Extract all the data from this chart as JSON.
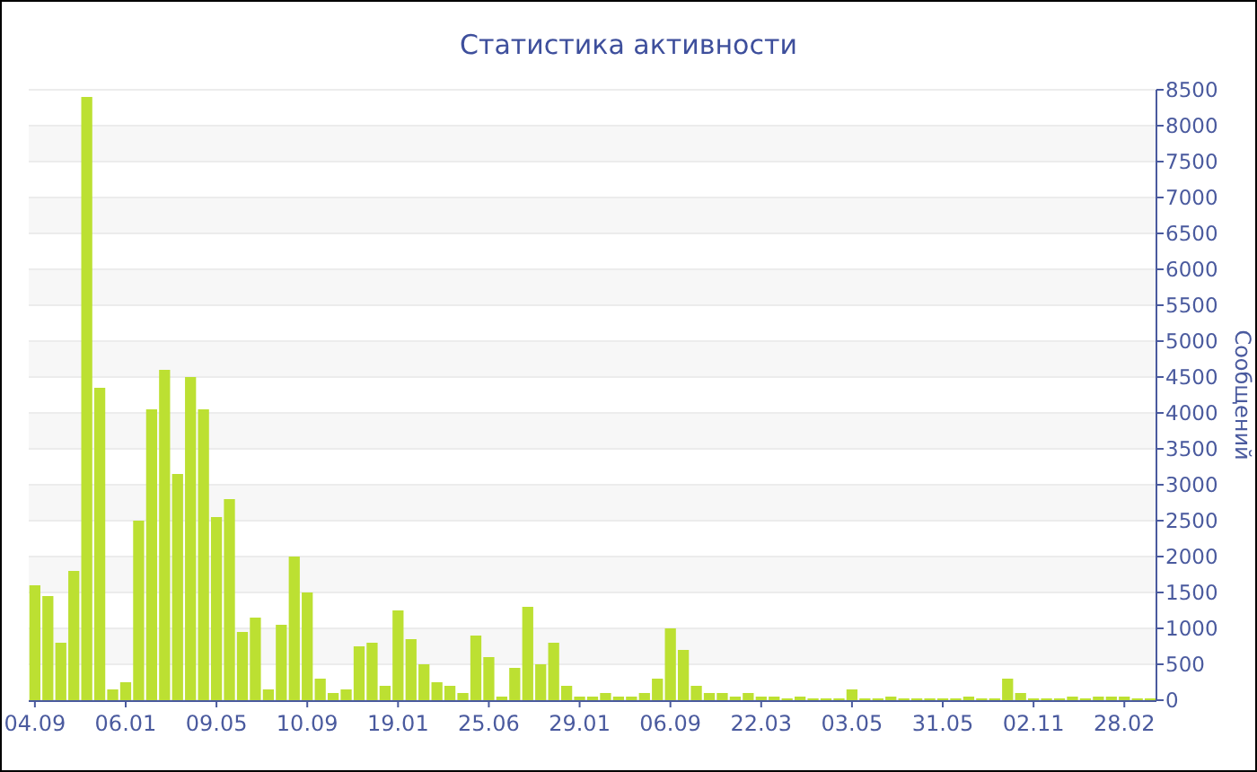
{
  "chart_data": {
    "type": "bar",
    "title": "Статистика активности",
    "ylabel": "Сообщений",
    "categories": [
      "04.09",
      null,
      null,
      null,
      null,
      null,
      null,
      "06.01",
      null,
      null,
      null,
      null,
      null,
      null,
      "09.05",
      null,
      null,
      null,
      null,
      null,
      null,
      "10.09",
      null,
      null,
      null,
      null,
      null,
      null,
      "19.01",
      null,
      null,
      null,
      null,
      null,
      null,
      "25.06",
      null,
      null,
      null,
      null,
      null,
      null,
      "29.01",
      null,
      null,
      null,
      null,
      null,
      null,
      "06.09",
      null,
      null,
      null,
      null,
      null,
      null,
      "22.03",
      null,
      null,
      null,
      null,
      null,
      null,
      "03.05",
      null,
      null,
      null,
      null,
      null,
      null,
      "31.05",
      null,
      null,
      null,
      null,
      null,
      null,
      "02.11",
      null,
      null,
      null,
      null,
      null,
      null,
      "28.02",
      null,
      null
    ],
    "values": [
      1600,
      1450,
      800,
      1800,
      8400,
      4350,
      150,
      250,
      2500,
      4050,
      4600,
      3150,
      4500,
      4050,
      2550,
      2800,
      950,
      1150,
      150,
      1050,
      2000,
      1500,
      300,
      100,
      150,
      750,
      800,
      200,
      1250,
      850,
      500,
      250,
      200,
      100,
      900,
      600,
      50,
      450,
      1300,
      500,
      800,
      200,
      50,
      50,
      100,
      50,
      50,
      100,
      300,
      1000,
      700,
      200,
      100,
      100,
      50,
      100,
      50,
      50,
      25,
      50,
      25,
      25,
      25,
      150,
      25,
      25,
      50,
      25,
      25,
      25,
      25,
      25,
      50,
      25,
      25,
      300,
      100,
      25,
      25,
      25,
      50,
      25,
      50,
      50,
      50,
      25,
      25
    ],
    "color": "#bce032",
    "ylim": [
      0,
      8500
    ],
    "yticks": [
      0,
      500,
      1000,
      1500,
      2000,
      2500,
      3000,
      3500,
      4000,
      4500,
      5000,
      5500,
      6000,
      6500,
      7000,
      7500,
      8000,
      8500
    ],
    "grid": "y"
  }
}
